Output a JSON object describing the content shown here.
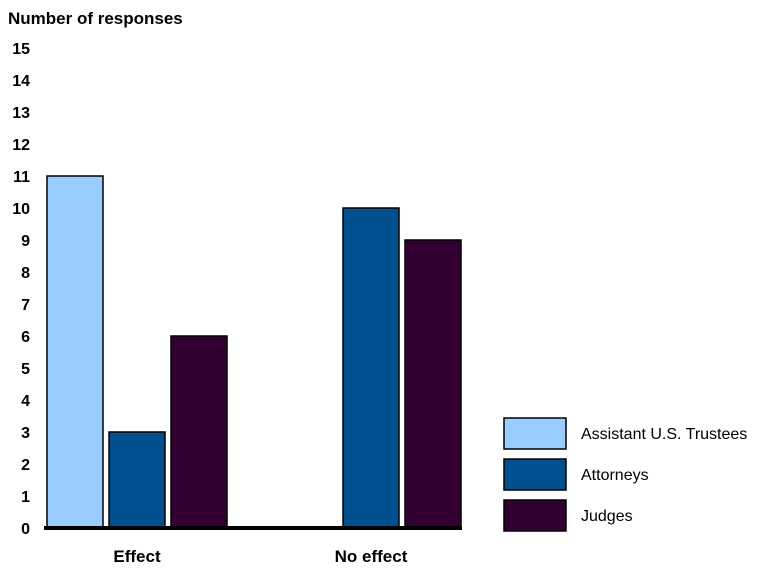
{
  "chart_data": {
    "type": "bar",
    "ylabel": "Number of responses",
    "categories": [
      "Effect",
      "No effect"
    ],
    "yticks": [
      "0",
      "1",
      "2",
      "3",
      "4",
      "5",
      "6",
      "7",
      "8",
      "9",
      "10",
      "11",
      "12",
      "13",
      "14",
      "15"
    ],
    "ylim": [
      0,
      15
    ],
    "grid": false,
    "legend_position": "bottom-right",
    "series": [
      {
        "name": "Assistant U.S. Trustees",
        "color": "#99ccff",
        "values": [
          11,
          0
        ]
      },
      {
        "name": "Attorneys",
        "color": "#004f8f",
        "values": [
          3,
          10
        ]
      },
      {
        "name": "Judges",
        "color": "#330033",
        "values": [
          6,
          9
        ]
      }
    ]
  }
}
